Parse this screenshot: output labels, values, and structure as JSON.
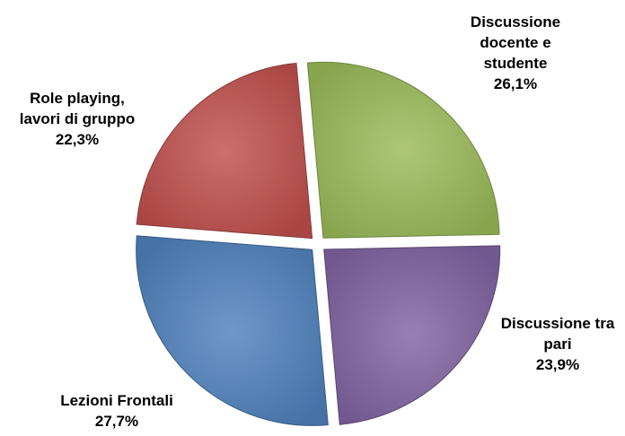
{
  "chart_data": {
    "type": "pie",
    "title": "",
    "slices": [
      {
        "label_lines": [
          "Discussione",
          "docente e",
          "studente"
        ],
        "value": 26.1,
        "value_label": "26,1%",
        "color": "#9BBB59"
      },
      {
        "label_lines": [
          "Discussione tra",
          "pari"
        ],
        "value": 23.9,
        "value_label": "23,9%",
        "color": "#8064A2"
      },
      {
        "label_lines": [
          "Lezioni Frontali"
        ],
        "value": 27.7,
        "value_label": "27,7%",
        "color": "#4F81BD"
      },
      {
        "label_lines": [
          "Role playing,",
          "lavori di gruppo"
        ],
        "value": 22.3,
        "value_label": "22,3%",
        "color": "#C0504D"
      }
    ]
  }
}
